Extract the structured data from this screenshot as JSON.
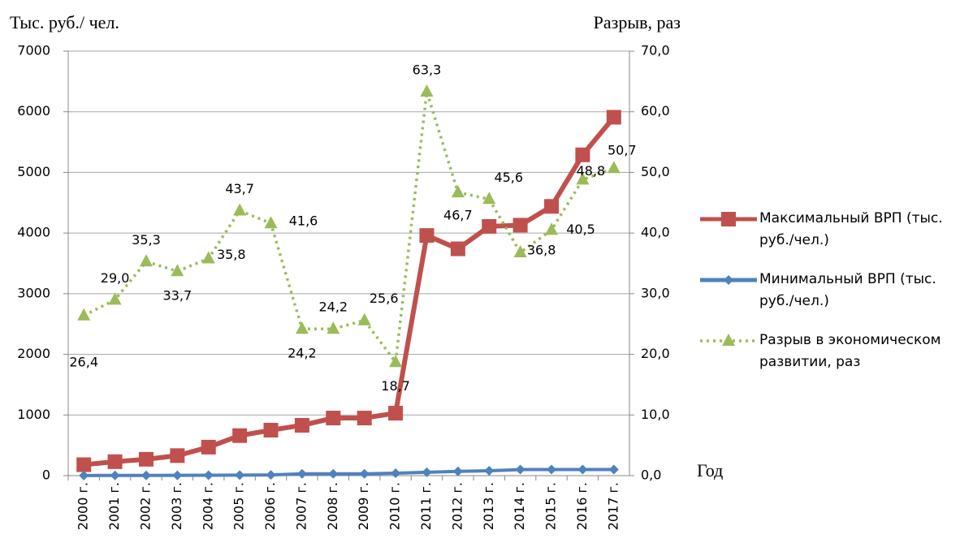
{
  "chart_data": {
    "type": "line",
    "y_label": "Тыс. руб./ чел.",
    "y2_label": "Разрыв, раз",
    "x_label": "Год",
    "categories": [
      "2000 г.",
      "2001 г.",
      "2002 г.",
      "2003 г.",
      "2004 г.",
      "2005 г.",
      "2006 г.",
      "2007 г.",
      "2008 г.",
      "2009 г.",
      "2010 г.",
      "2011 г.",
      "2012 г.",
      "2013 г.",
      "2014 г.",
      "2015 г.",
      "2016 г.",
      "2017 г."
    ],
    "ylim": [
      0,
      7000
    ],
    "yticks": [
      0,
      1000,
      2000,
      3000,
      4000,
      5000,
      6000,
      7000
    ],
    "y2lim": [
      0,
      70
    ],
    "y2ticks": [
      {
        "value": 0,
        "label": "0,0"
      },
      {
        "value": 10,
        "label": "10,0"
      },
      {
        "value": 20,
        "label": "20,0"
      },
      {
        "value": 30,
        "label": "30,0"
      },
      {
        "value": 40,
        "label": "40,0"
      },
      {
        "value": 50,
        "label": "50,0"
      },
      {
        "value": 60,
        "label": "60,0"
      },
      {
        "value": 70,
        "label": "70,0"
      }
    ],
    "grid": true,
    "series": [
      {
        "name": "Максимальный ВРП (тыс. руб./чел.)",
        "color": "#c0504d",
        "marker": "square",
        "values": [
          180,
          230,
          270,
          330,
          470,
          660,
          750,
          830,
          950,
          950,
          1030,
          3960,
          3740,
          4110,
          4130,
          4440,
          5290,
          5910
        ]
      },
      {
        "name": "Минимальный ВРП (тыс. руб./чел.)",
        "color": "#4f81bd",
        "marker": "diamond",
        "values": [
          2,
          3,
          4,
          5,
          7,
          9,
          12,
          30,
          30,
          30,
          40,
          55,
          70,
          80,
          100,
          100,
          100,
          100
        ]
      },
      {
        "name": "Разрыв в экономическом развитии, раз",
        "color": "#9bbb59",
        "marker": "triangle",
        "dashed": true,
        "axis": "y2",
        "values": [
          26.4,
          29.0,
          35.3,
          33.7,
          35.8,
          43.7,
          41.6,
          24.2,
          24.2,
          25.6,
          18.7,
          63.3,
          46.7,
          45.6,
          36.8,
          40.5,
          48.8,
          50.7
        ],
        "value_labels": [
          "26,4",
          "29,0",
          "35,3",
          "33,7",
          "35,8",
          "43,7",
          "41,6",
          "24,2",
          "24,2",
          "25,6",
          "18,7",
          "63,3",
          "46,7",
          "45,6",
          "36,8",
          "40,5",
          "48,8",
          "50,7"
        ]
      }
    ]
  }
}
